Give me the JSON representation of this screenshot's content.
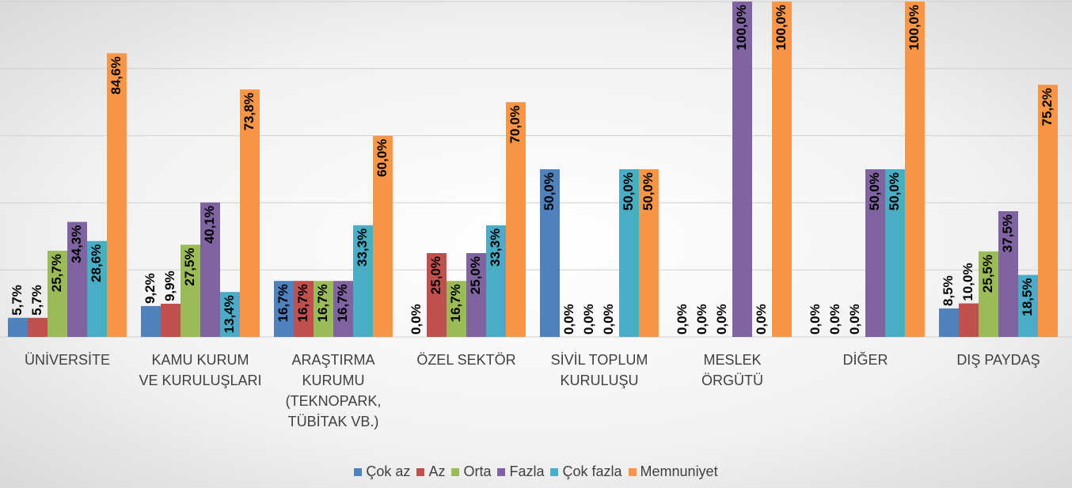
{
  "chart_data": {
    "type": "bar",
    "categories": [
      "ÜNİVERSİTE",
      "KAMU KURUM\nVE KURULUŞLARI",
      "ARAŞTIRMA\nKURUMU\n(TEKNOPARK,\nTÜBİTAK VB.)",
      "ÖZEL SEKTÖR",
      "SİVİL TOPLUM\nKURULUŞU",
      "MESLEK\nÖRGÜTÜ",
      "DİĞER",
      "DIŞ PAYDAŞ"
    ],
    "series": [
      {
        "name": "Çok az",
        "color": "#4f81bd",
        "values": [
          5.7,
          9.2,
          16.7,
          0,
          50,
          0,
          0,
          8.5
        ],
        "value_labels": [
          "5,7%",
          "9,2%",
          "16,7%",
          "0,0%",
          "50,0%",
          "0,0%",
          "0,0%",
          "8,5%"
        ]
      },
      {
        "name": "Az",
        "color": "#c0504d",
        "values": [
          5.7,
          9.9,
          16.7,
          25,
          0,
          0,
          0,
          10
        ],
        "value_labels": [
          "5,7%",
          "9,9%",
          "16,7%",
          "25,0%",
          "0,0%",
          "0,0%",
          "0,0%",
          "10,0%"
        ]
      },
      {
        "name": "Orta",
        "color": "#9bbb59",
        "values": [
          25.7,
          27.5,
          16.7,
          16.7,
          0,
          0,
          0,
          25.5
        ],
        "value_labels": [
          "25,7%",
          "27,5%",
          "16,7%",
          "16,7%",
          "0,0%",
          "0,0%",
          "0,0%",
          "25,5%"
        ]
      },
      {
        "name": "Fazla",
        "color": "#8064a2",
        "values": [
          34.3,
          40.1,
          16.7,
          25,
          0,
          100,
          50,
          37.5
        ],
        "value_labels": [
          "34,3%",
          "40,1%",
          "16,7%",
          "25,0%",
          "0,0%",
          "100,0%",
          "50,0%",
          "37,5%"
        ]
      },
      {
        "name": "Çok fazla",
        "color": "#4bacc6",
        "values": [
          28.6,
          13.4,
          33.3,
          33.3,
          50,
          0,
          50,
          18.5
        ],
        "value_labels": [
          "28,6%",
          "13,4%",
          "33,3%",
          "33,3%",
          "50,0%",
          "0,0%",
          "50,0%",
          "18,5%"
        ]
      },
      {
        "name": "Memnuniyet",
        "color": "#f79646",
        "values": [
          84.6,
          73.8,
          60,
          70,
          50,
          100,
          100,
          75.2
        ],
        "value_labels": [
          "84,6%",
          "73,8%",
          "60,0%",
          "70,0%",
          "50,0%",
          "100,0%",
          "100,0%",
          "75,2%"
        ]
      }
    ],
    "ylim": [
      0,
      100
    ],
    "yticks": [
      0,
      20,
      40,
      60,
      80,
      100
    ],
    "grid": true,
    "legend": "bottom"
  }
}
